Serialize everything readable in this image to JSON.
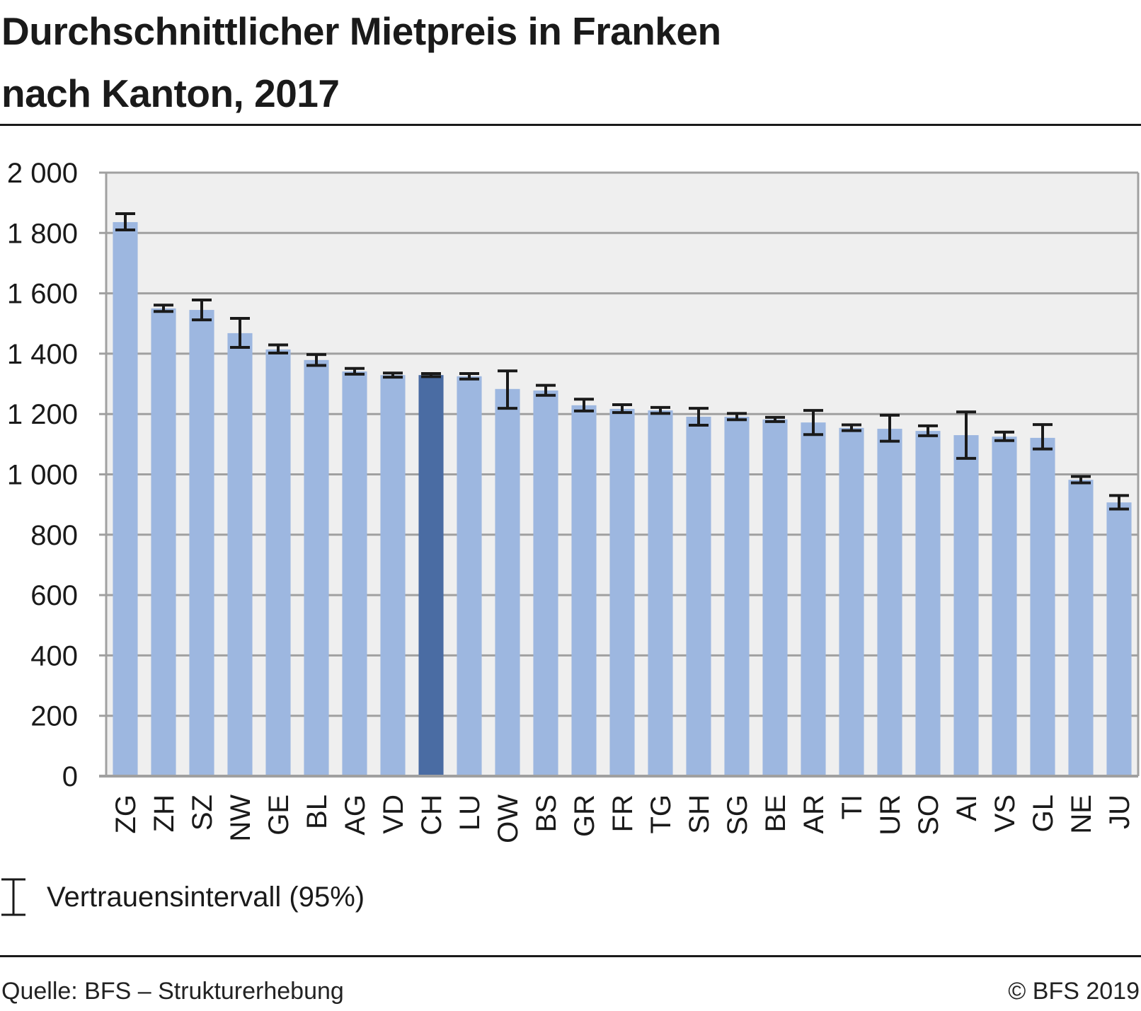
{
  "chart_data": {
    "type": "bar",
    "title": "Durchschnittlicher Mietpreis in Franken nach Kanton, 2017",
    "title_lines": [
      "Durchschnittlicher Mietpreis in Franken",
      "nach Kanton, 2017"
    ],
    "xlabel": "",
    "ylabel": "",
    "ylim": [
      0,
      2000
    ],
    "yticks": [
      0,
      200,
      400,
      600,
      800,
      1000,
      1200,
      1400,
      1600,
      1800,
      2000
    ],
    "ytick_labels": [
      "0",
      "200",
      "400",
      "600",
      "800",
      "1 000",
      "1 200",
      "1 400",
      "1 600",
      "1 800",
      "2 000"
    ],
    "grid": true,
    "categories": [
      "ZG",
      "ZH",
      "SZ",
      "NW",
      "GE",
      "BL",
      "AG",
      "VD",
      "CH",
      "LU",
      "OW",
      "BS",
      "GR",
      "FR",
      "TG",
      "SH",
      "SG",
      "BE",
      "AR",
      "TI",
      "UR",
      "SO",
      "AI",
      "VS",
      "GL",
      "NE",
      "JU"
    ],
    "values": [
      1836,
      1550,
      1545,
      1468,
      1414,
      1379,
      1341,
      1329,
      1329,
      1325,
      1283,
      1278,
      1229,
      1217,
      1212,
      1191,
      1191,
      1182,
      1172,
      1154,
      1151,
      1144,
      1130,
      1125,
      1121,
      982,
      907
    ],
    "ci_low": [
      1810,
      1540,
      1512,
      1421,
      1402,
      1361,
      1332,
      1322,
      1324,
      1316,
      1219,
      1262,
      1210,
      1205,
      1202,
      1163,
      1181,
      1175,
      1132,
      1145,
      1110,
      1128,
      1053,
      1112,
      1084,
      972,
      885
    ],
    "ci_high": [
      1864,
      1561,
      1578,
      1517,
      1429,
      1397,
      1351,
      1336,
      1334,
      1334,
      1343,
      1295,
      1249,
      1231,
      1222,
      1219,
      1202,
      1189,
      1212,
      1164,
      1196,
      1161,
      1207,
      1140,
      1165,
      993,
      930
    ],
    "highlight_category": "CH",
    "colors": {
      "bar": "#9db7e0",
      "highlight": "#4a6ca3",
      "plot_bg": "#efefef",
      "grid": "#a0a0a0",
      "errorbar": "#1a1a1a"
    },
    "legend": [
      {
        "label": "Vertrauensintervall (95%)",
        "symbol": "error-bar"
      }
    ],
    "legend_position": "bottom-left",
    "source": "Quelle: BFS – Strukturerhebung",
    "copyright": "© BFS 2019"
  }
}
